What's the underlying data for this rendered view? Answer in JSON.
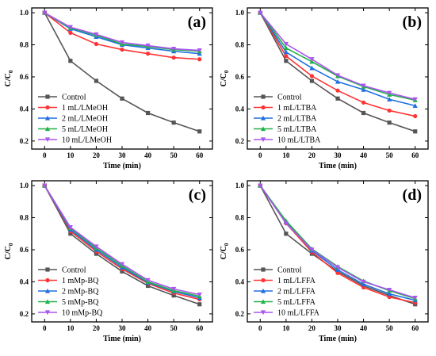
{
  "chart_data": [
    {
      "type": "line",
      "panel_label": "(a)",
      "x": [
        0,
        10,
        20,
        30,
        40,
        50,
        60
      ],
      "xlabel": "Time (min)",
      "ylabel": "C/C",
      "ylabel_subscript": "0",
      "xlim": [
        -5,
        65
      ],
      "ylim": [
        0.15,
        1.03
      ],
      "xticks": [
        "0",
        "10",
        "20",
        "30",
        "40",
        "50",
        "60"
      ],
      "yticks": [
        "0.2",
        "0.4",
        "0.6",
        "0.8",
        "1.0"
      ],
      "legend_position": "bottom-left",
      "series": [
        {
          "name": "Control",
          "color": "#555555",
          "marker": "square",
          "values": [
            1.0,
            0.7,
            0.575,
            0.465,
            0.375,
            0.315,
            0.26
          ]
        },
        {
          "name": "1 mL/LMeOH",
          "color": "#ff3333",
          "marker": "circle",
          "values": [
            1.0,
            0.875,
            0.805,
            0.77,
            0.745,
            0.72,
            0.71
          ]
        },
        {
          "name": "2 mL/LMeOH",
          "color": "#1e6fe0",
          "marker": "triangle-up",
          "values": [
            1.0,
            0.9,
            0.85,
            0.8,
            0.78,
            0.76,
            0.745
          ]
        },
        {
          "name": "5 mL/LMeOH",
          "color": "#22b04a",
          "marker": "triangle-up",
          "values": [
            1.0,
            0.905,
            0.86,
            0.805,
            0.79,
            0.77,
            0.76
          ]
        },
        {
          "name": "10 mL/LMeOH",
          "color": "#aa55ee",
          "marker": "triangle-down",
          "values": [
            1.0,
            0.91,
            0.865,
            0.815,
            0.795,
            0.775,
            0.765
          ]
        }
      ]
    },
    {
      "type": "line",
      "panel_label": "(b)",
      "x": [
        0,
        10,
        20,
        30,
        40,
        50,
        60
      ],
      "xlabel": "Time (min)",
      "ylabel": "C/C",
      "ylabel_subscript": "0",
      "xlim": [
        -5,
        65
      ],
      "ylim": [
        0.15,
        1.03
      ],
      "xticks": [
        "0",
        "10",
        "20",
        "30",
        "40",
        "50",
        "60"
      ],
      "yticks": [
        "0.2",
        "0.4",
        "0.6",
        "0.8",
        "1.0"
      ],
      "legend_position": "bottom-left",
      "series": [
        {
          "name": "Control",
          "color": "#555555",
          "marker": "square",
          "values": [
            1.0,
            0.7,
            0.575,
            0.465,
            0.375,
            0.315,
            0.26
          ]
        },
        {
          "name": "1 mL/LTBA",
          "color": "#ff3333",
          "marker": "circle",
          "values": [
            1.0,
            0.73,
            0.605,
            0.515,
            0.44,
            0.39,
            0.355
          ]
        },
        {
          "name": "2 mL/LTBA",
          "color": "#1e6fe0",
          "marker": "triangle-up",
          "values": [
            1.0,
            0.755,
            0.655,
            0.57,
            0.52,
            0.46,
            0.42
          ]
        },
        {
          "name": "5 mL/LTBA",
          "color": "#22b04a",
          "marker": "triangle-up",
          "values": [
            1.0,
            0.78,
            0.695,
            0.605,
            0.54,
            0.49,
            0.455
          ]
        },
        {
          "name": "10 mL/LTBA",
          "color": "#aa55ee",
          "marker": "triangle-down",
          "values": [
            1.0,
            0.805,
            0.71,
            0.61,
            0.545,
            0.5,
            0.46
          ]
        }
      ]
    },
    {
      "type": "line",
      "panel_label": "(c)",
      "x": [
        0,
        10,
        20,
        30,
        40,
        50,
        60
      ],
      "xlabel": "Time (min)",
      "ylabel": "C/C",
      "ylabel_subscript": "0",
      "xlim": [
        -5,
        65
      ],
      "ylim": [
        0.15,
        1.03
      ],
      "xticks": [
        "0",
        "10",
        "20",
        "30",
        "40",
        "50",
        "60"
      ],
      "yticks": [
        "0.2",
        "0.4",
        "0.6",
        "0.8",
        "1.0"
      ],
      "legend_position": "bottom-left",
      "series": [
        {
          "name": "Control",
          "color": "#555555",
          "marker": "square",
          "values": [
            1.0,
            0.7,
            0.575,
            0.465,
            0.375,
            0.315,
            0.26
          ]
        },
        {
          "name": "1 mMp-BQ",
          "color": "#ff3333",
          "marker": "circle",
          "values": [
            1.0,
            0.715,
            0.59,
            0.48,
            0.39,
            0.33,
            0.29
          ]
        },
        {
          "name": "2 mMp-BQ",
          "color": "#1e6fe0",
          "marker": "triangle-up",
          "values": [
            1.0,
            0.725,
            0.6,
            0.49,
            0.395,
            0.34,
            0.3
          ]
        },
        {
          "name": "5 mMp-BQ",
          "color": "#22b04a",
          "marker": "triangle-up",
          "values": [
            1.0,
            0.735,
            0.61,
            0.5,
            0.4,
            0.345,
            0.31
          ]
        },
        {
          "name": "10 mMp-BQ",
          "color": "#aa55ee",
          "marker": "triangle-down",
          "values": [
            1.0,
            0.74,
            0.62,
            0.51,
            0.41,
            0.355,
            0.32
          ]
        }
      ]
    },
    {
      "type": "line",
      "panel_label": "(d)",
      "x": [
        0,
        10,
        20,
        30,
        40,
        50,
        60
      ],
      "xlabel": "Time (min)",
      "ylabel": "C/C",
      "ylabel_subscript": "0",
      "xlim": [
        -5,
        65
      ],
      "ylim": [
        0.15,
        1.03
      ],
      "xticks": [
        "0",
        "10",
        "20",
        "30",
        "40",
        "50",
        "60"
      ],
      "yticks": [
        "0.2",
        "0.4",
        "0.6",
        "0.8",
        "1.0"
      ],
      "legend_position": "bottom-left",
      "series": [
        {
          "name": "Control",
          "color": "#555555",
          "marker": "square",
          "values": [
            1.0,
            0.7,
            0.575,
            0.465,
            0.375,
            0.315,
            0.26
          ]
        },
        {
          "name": "1 mL/LFFA",
          "color": "#ff3333",
          "marker": "circle",
          "values": [
            1.0,
            0.765,
            0.585,
            0.455,
            0.365,
            0.305,
            0.27
          ]
        },
        {
          "name": "2 mL/LFFA",
          "color": "#1e6fe0",
          "marker": "triangle-up",
          "values": [
            1.0,
            0.775,
            0.595,
            0.475,
            0.385,
            0.325,
            0.285
          ]
        },
        {
          "name": "5 mL/LFFA",
          "color": "#22b04a",
          "marker": "triangle-up",
          "values": [
            1.0,
            0.78,
            0.605,
            0.495,
            0.405,
            0.345,
            0.295
          ]
        },
        {
          "name": "10 mL/LFFA",
          "color": "#aa55ee",
          "marker": "triangle-down",
          "values": [
            1.0,
            0.765,
            0.6,
            0.49,
            0.4,
            0.35,
            0.3
          ]
        }
      ]
    }
  ]
}
